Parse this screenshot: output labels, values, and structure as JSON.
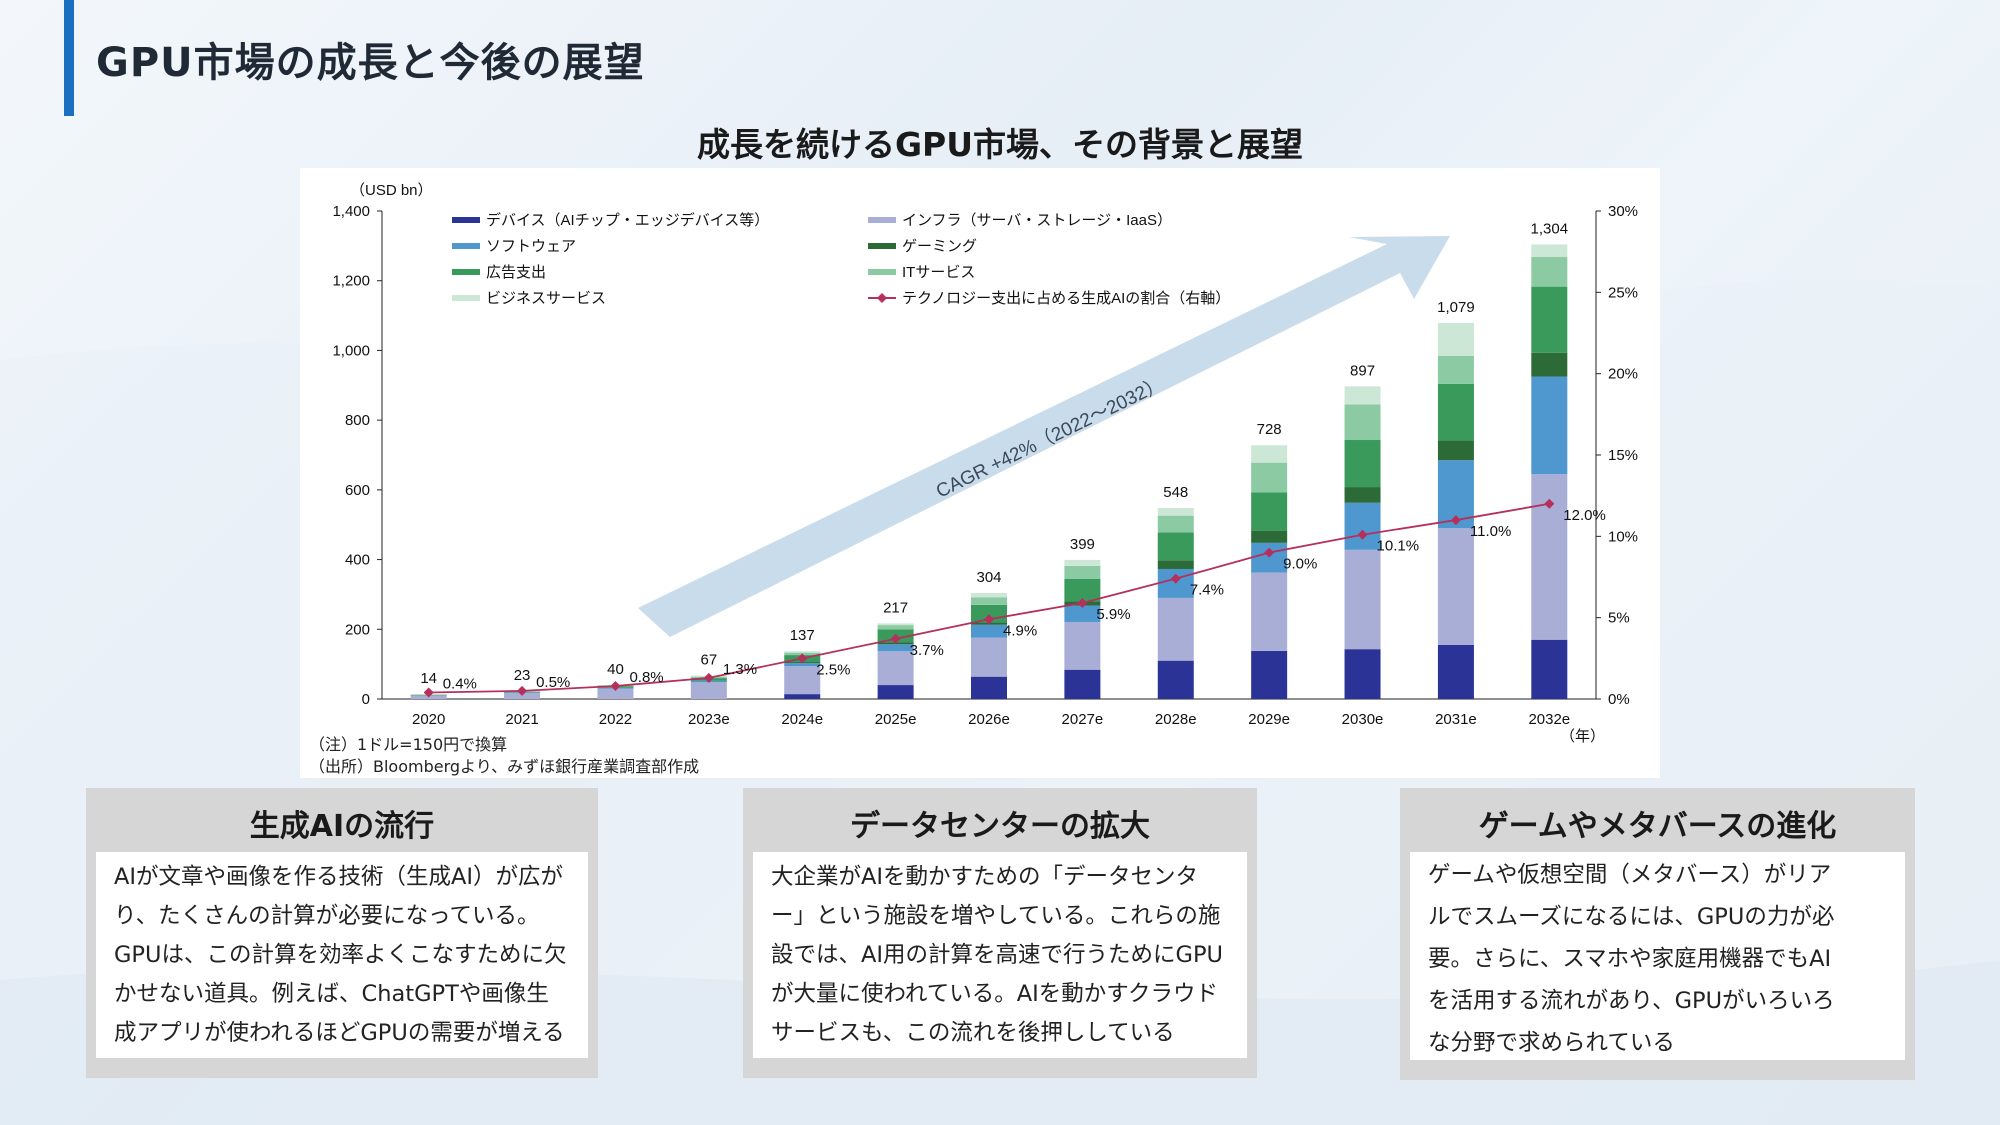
{
  "page_title": "GPU市場の成長と今後の展望",
  "chart_heading": "成長を続けるGPU市場、その背景と展望",
  "notes": [
    "（注）1ドル=150円で換算",
    "（出所）Bloombergより、みずほ銀行産業調査部作成"
  ],
  "colors": {
    "accent": "#1b6fc0",
    "device": "#2b3397",
    "infra": "#a8aed6",
    "software": "#4f97cf",
    "gaming": "#2c6b37",
    "ad": "#3a9a5c",
    "it_service": "#8ccaa4",
    "business": "#cde7d7",
    "ratio_line": "#b5305c",
    "cagr_arrow": "#c9dcec"
  },
  "chart_data": {
    "type": "bar",
    "stacked": true,
    "left_unit": "（USD bn）",
    "right_unit": "（年）",
    "categories": [
      "2020",
      "2021",
      "2022",
      "2023e",
      "2024e",
      "2025e",
      "2026e",
      "2027e",
      "2028e",
      "2029e",
      "2030e",
      "2031e",
      "2032e"
    ],
    "ylim": [
      0,
      1400
    ],
    "yticks": [
      "0",
      "200",
      "400",
      "600",
      "800",
      "1,000",
      "1,200",
      "1,400"
    ],
    "y2lim": [
      0,
      30
    ],
    "y2ticks": [
      "0%",
      "5%",
      "10%",
      "15%",
      "20%",
      "25%",
      "30%"
    ],
    "totals": [
      14,
      23,
      40,
      67,
      137,
      217,
      304,
      399,
      548,
      728,
      897,
      1079,
      1304
    ],
    "total_labels": [
      "14",
      "23",
      "40",
      "67",
      "137",
      "217",
      "304",
      "399",
      "548",
      "728",
      "897",
      "1,079",
      "1,304"
    ],
    "series": [
      {
        "name": "デバイス（AIチップ・エッジデバイス等）",
        "values": [
          0,
          0,
          0,
          0,
          14,
          40,
          64,
          84,
          110,
          138,
          143,
          155,
          170
        ]
      },
      {
        "name": "インフラ（サーバ・ストレージ・IaaS）",
        "values": [
          11,
          18,
          30,
          48,
          80,
          97,
          112,
          137,
          180,
          225,
          285,
          335,
          475
        ]
      },
      {
        "name": "ソフトウェア",
        "values": [
          0,
          1,
          2,
          4,
          9,
          20,
          37,
          47,
          83,
          85,
          135,
          195,
          280
        ]
      },
      {
        "name": "ゲーミング",
        "values": [
          0,
          0,
          0,
          0,
          3,
          6,
          7,
          12,
          25,
          35,
          45,
          57,
          68
        ]
      },
      {
        "name": "広告支出",
        "values": [
          1,
          2,
          5,
          8,
          20,
          37,
          50,
          65,
          80,
          110,
          135,
          162,
          190
        ]
      },
      {
        "name": "ITサービス",
        "values": [
          1,
          1,
          2,
          4,
          7,
          12,
          22,
          37,
          48,
          85,
          102,
          80,
          85
        ]
      },
      {
        "name": "ビジネスサービス",
        "values": [
          1,
          1,
          1,
          3,
          4,
          5,
          12,
          17,
          22,
          50,
          52,
          95,
          36
        ]
      }
    ],
    "ratio": {
      "name": "テクノロジー支出に占める生成AIの割合（右軸）",
      "values": [
        0.4,
        0.5,
        0.8,
        1.3,
        2.5,
        3.7,
        4.9,
        5.9,
        7.4,
        9.0,
        10.1,
        11.0,
        12.0
      ],
      "labels": [
        "0.4%",
        "0.5%",
        "0.8%",
        "1.3%",
        "2.5%",
        "3.7%",
        "4.9%",
        "5.9%",
        "7.4%",
        "9.0%",
        "10.1%",
        "11.0%",
        "12.0%"
      ]
    },
    "cagr_label": "CAGR +42%（2022～2032）"
  },
  "cards": [
    {
      "title": "生成AIの流行",
      "lines": [
        "AIが文章や画像を作る技術（生成AI）が広が",
        "り、たくさんの計算が必要になっている。",
        "GPUは、この計算を効率よくこなすために欠",
        "かせない道具。例えば、ChatGPTや画像生",
        "成アプリが使われるほどGPUの需要が増える"
      ]
    },
    {
      "title": "データセンターの拡大",
      "lines": [
        "大企業がAIを動かすための「データセンタ",
        "ー」という施設を増やしている。これらの施",
        "設では、AI用の計算を高速で行うためにGPU",
        "が大量に使われている。AIを動かすクラウド",
        "サービスも、この流れを後押ししている"
      ]
    },
    {
      "title": "ゲームやメタバースの進化",
      "lines": [
        "ゲームや仮想空間（メタバース）がリア",
        "ルでスムーズになるには、GPUの力が必",
        "要。さらに、スマホや家庭用機器でもAI",
        "を活用する流れがあり、GPUがいろいろ",
        "な分野で求められている"
      ]
    }
  ]
}
